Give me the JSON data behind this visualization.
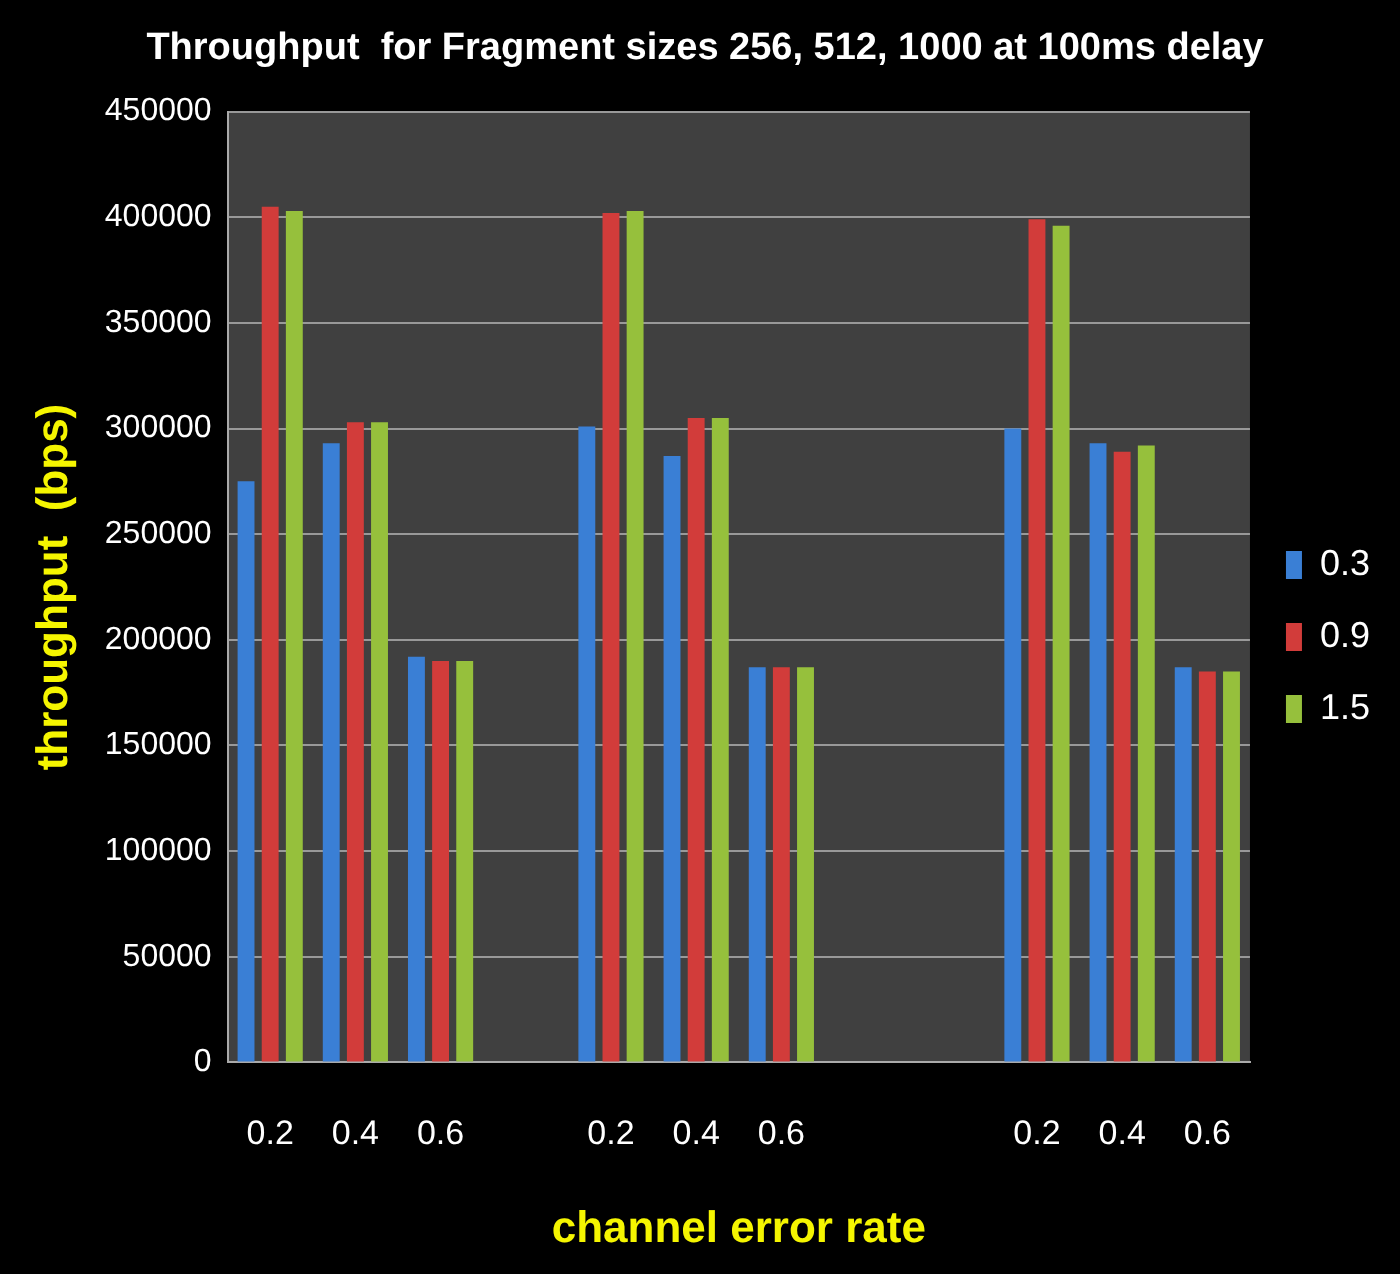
{
  "chart_data": {
    "type": "bar",
    "title": "Throughput  for Fragment sizes 256, 512, 1000 at 100ms delay",
    "xlabel": "channel error rate",
    "ylabel": "throughput  (bps)",
    "categories": [
      "0.2",
      "0.4",
      "0.6",
      null,
      "0.2",
      "0.4",
      "0.6",
      null,
      null,
      "0.2",
      "0.4",
      "0.6"
    ],
    "series": [
      {
        "name": "0.3",
        "color": "#3a7fd5",
        "values": [
          275000,
          293000,
          192000,
          null,
          301000,
          287000,
          187000,
          null,
          null,
          300000,
          293000,
          187000
        ]
      },
      {
        "name": "0.9",
        "color": "#d23c3a",
        "values": [
          405000,
          303000,
          190000,
          null,
          402000,
          305000,
          187000,
          null,
          null,
          399000,
          289000,
          185000
        ]
      },
      {
        "name": "1.5",
        "color": "#96c03c",
        "values": [
          403000,
          303000,
          190000,
          null,
          403000,
          305000,
          187000,
          null,
          null,
          396000,
          292000,
          185000
        ]
      }
    ],
    "ylim": [
      0,
      450000
    ],
    "yticks": [
      0,
      50000,
      100000,
      150000,
      200000,
      250000,
      300000,
      350000,
      400000,
      450000
    ],
    "grid": "y",
    "legend": "right"
  }
}
